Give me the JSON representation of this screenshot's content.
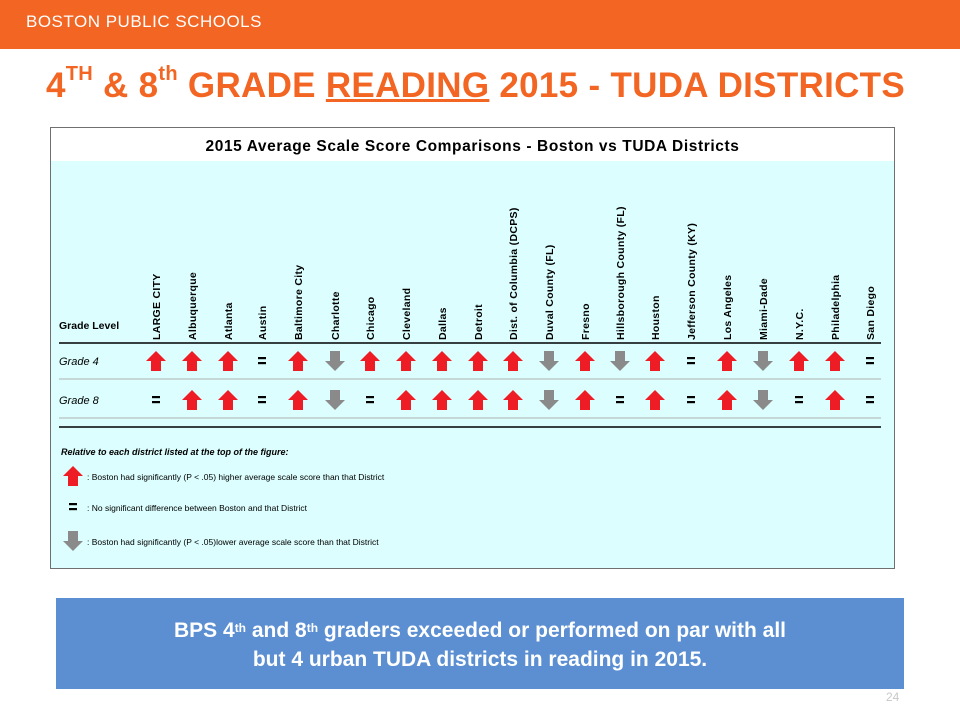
{
  "header": {
    "org": "BOSTON PUBLIC SCHOOLS"
  },
  "title": {
    "part1": "4",
    "sup1": "TH",
    "part2": " & 8",
    "sup2": "th",
    "part3": " GRADE ",
    "underlined": "READING",
    "part4": " 2015 - TUDA DISTRICTS"
  },
  "chart": {
    "title": "2015 Average Scale Score Comparisons - Boston vs TUDA Districts",
    "grade_level_label": "Grade Level",
    "districts": [
      "LARGE CITY",
      "Albuquerque",
      "Atlanta",
      "Austin",
      "Baltimore City",
      "Charlotte",
      "Chicago",
      "Cleveland",
      "Dallas",
      "Detroit",
      "Dist. of Columbia (DCPS)",
      "Duval County (FL)",
      "Fresno",
      "Hillsborough County (FL)",
      "Houston",
      "Jefferson County (KY)",
      "Los Angeles",
      "Miami-Dade",
      "N.Y.C.",
      "Philadelphia",
      "San Diego"
    ],
    "rows": [
      {
        "label": "Grade 4",
        "results": [
          "up",
          "up",
          "up",
          "eq",
          "up",
          "down",
          "up",
          "up",
          "up",
          "up",
          "up",
          "down",
          "up",
          "down",
          "up",
          "eq",
          "up",
          "down",
          "up",
          "up",
          "eq"
        ]
      },
      {
        "label": "Grade 8",
        "results": [
          "eq",
          "up",
          "up",
          "eq",
          "up",
          "down",
          "eq",
          "up",
          "up",
          "up",
          "up",
          "down",
          "up",
          "eq",
          "up",
          "eq",
          "up",
          "down",
          "eq",
          "up",
          "eq"
        ]
      }
    ],
    "legend": {
      "heading": "Relative to each district listed at the top of the figure:",
      "items": [
        {
          "symbol": "up",
          "text": ": Boston had significantly (P < .05) higher average scale score than that District"
        },
        {
          "symbol": "eq",
          "text": ": No significant difference between Boston and that District"
        },
        {
          "symbol": "down",
          "text": ": Boston had significantly (P < .05)lower average scale score than that District"
        }
      ]
    },
    "colors": {
      "up": "#ee1c25",
      "down": "#8a8a8a",
      "panel": "#dcfefe",
      "title_bar": "#ffffff"
    }
  },
  "callout": {
    "line1_a": "BPS 4",
    "line1_sup1": "th",
    "line1_b": " and 8",
    "line1_sup2": "th",
    "line1_c": " graders exceeded or performed on par with all",
    "line2": "but 4 urban TUDA districts in reading in 2015."
  },
  "page_number": "24"
}
